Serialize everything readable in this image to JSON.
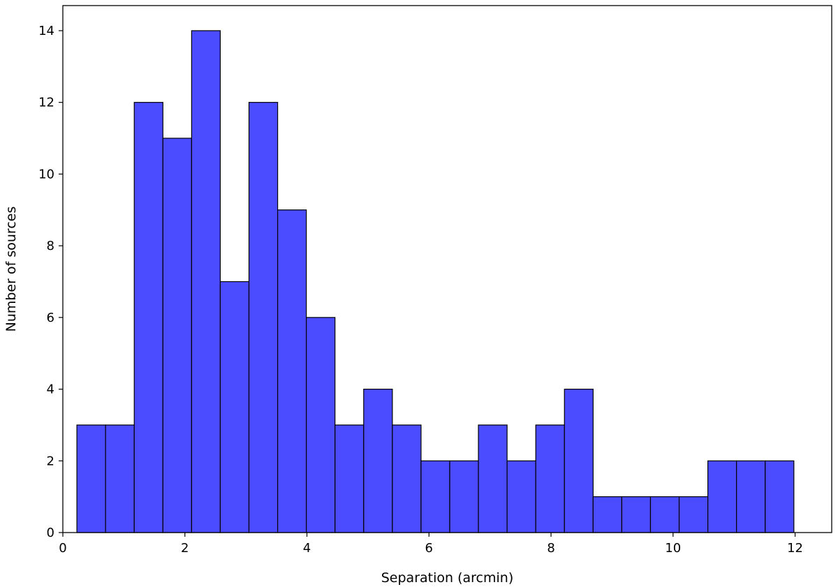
{
  "chart_data": {
    "type": "bar",
    "title": "",
    "xlabel": "Separation (arcmin)",
    "ylabel": "Number of sources",
    "xlim": [
      0,
      12.6
    ],
    "ylim": [
      0,
      14.7
    ],
    "xticks": [
      0,
      2,
      4,
      6,
      8,
      10,
      12
    ],
    "yticks": [
      0,
      2,
      4,
      6,
      8,
      10,
      12,
      14
    ],
    "grid": false,
    "bar_color": "#4b4bff",
    "edge_color": "#000000",
    "bins": [
      {
        "x0": 0.23,
        "x1": 0.7,
        "value": 3
      },
      {
        "x0": 0.7,
        "x1": 1.17,
        "value": 3
      },
      {
        "x0": 1.17,
        "x1": 1.64,
        "value": 12
      },
      {
        "x0": 1.64,
        "x1": 2.11,
        "value": 11
      },
      {
        "x0": 2.11,
        "x1": 2.58,
        "value": 14
      },
      {
        "x0": 2.58,
        "x1": 3.05,
        "value": 7
      },
      {
        "x0": 3.05,
        "x1": 3.52,
        "value": 12
      },
      {
        "x0": 3.52,
        "x1": 3.99,
        "value": 9
      },
      {
        "x0": 3.99,
        "x1": 4.46,
        "value": 6
      },
      {
        "x0": 4.46,
        "x1": 4.93,
        "value": 3
      },
      {
        "x0": 4.93,
        "x1": 5.4,
        "value": 4
      },
      {
        "x0": 5.4,
        "x1": 5.87,
        "value": 3
      },
      {
        "x0": 5.87,
        "x1": 6.34,
        "value": 2
      },
      {
        "x0": 6.34,
        "x1": 6.81,
        "value": 2
      },
      {
        "x0": 6.81,
        "x1": 7.28,
        "value": 3
      },
      {
        "x0": 7.28,
        "x1": 7.75,
        "value": 2
      },
      {
        "x0": 7.75,
        "x1": 8.22,
        "value": 3
      },
      {
        "x0": 8.22,
        "x1": 8.69,
        "value": 4
      },
      {
        "x0": 8.69,
        "x1": 9.16,
        "value": 1
      },
      {
        "x0": 9.16,
        "x1": 9.63,
        "value": 1
      },
      {
        "x0": 9.63,
        "x1": 10.1,
        "value": 1
      },
      {
        "x0": 10.1,
        "x1": 10.57,
        "value": 1
      },
      {
        "x0": 10.57,
        "x1": 11.04,
        "value": 2
      },
      {
        "x0": 11.04,
        "x1": 11.51,
        "value": 2
      },
      {
        "x0": 11.51,
        "x1": 11.98,
        "value": 2
      }
    ]
  }
}
